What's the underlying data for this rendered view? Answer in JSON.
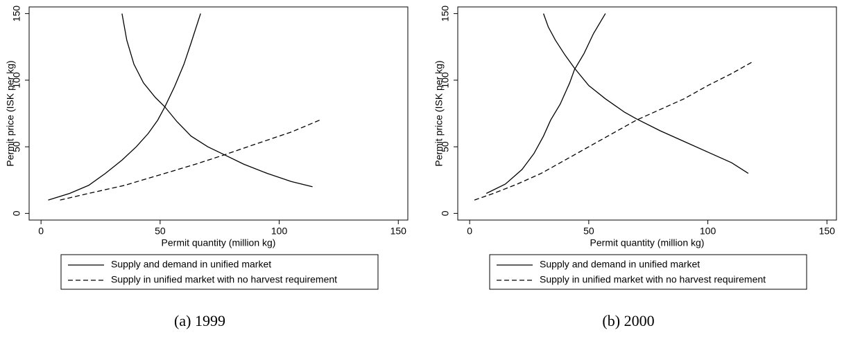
{
  "chart_data": [
    {
      "type": "line",
      "caption": "(a) 1999",
      "x_label": "Permit quantity (million kg)",
      "y_label": "Permit price (ISK per kg)",
      "xlim": [
        -5,
        154
      ],
      "ylim": [
        -5,
        155
      ],
      "xticks": [
        0,
        50,
        100,
        150
      ],
      "yticks": [
        0,
        50,
        100,
        150
      ],
      "series": [
        {
          "name": "Supply and demand in unified market",
          "color": "#000000",
          "dash": "solid",
          "lines": [
            {
              "x": [
                3,
                12,
                20,
                27,
                34,
                40,
                45,
                49,
                52,
                56,
                60,
                63,
                67
              ],
              "y": [
                10,
                15,
                21,
                30,
                40,
                50,
                60,
                70,
                80,
                95,
                112,
                128,
                150
              ]
            },
            {
              "x": [
                34,
                36,
                39,
                43,
                48,
                52,
                57,
                63,
                70,
                77,
                85,
                95,
                105,
                114
              ],
              "y": [
                150,
                130,
                112,
                98,
                87,
                80,
                69,
                58,
                50,
                44,
                37,
                30,
                24,
                20
              ]
            }
          ]
        },
        {
          "name": "Supply in unified market with no harvest requirement",
          "color": "#000000",
          "dash": "dashed",
          "lines": [
            {
              "x": [
                8,
                20,
                35,
                50,
                65,
                77,
                90,
                105,
                117
              ],
              "y": [
                10,
                15,
                21,
                29,
                37,
                44,
                52,
                61,
                70
              ]
            }
          ]
        }
      ]
    },
    {
      "type": "line",
      "caption": "(b) 2000",
      "x_label": "Permit quantity (million kg)",
      "y_label": "Permit price (ISK per kg)",
      "xlim": [
        -5,
        154
      ],
      "ylim": [
        -5,
        155
      ],
      "xticks": [
        0,
        50,
        100,
        150
      ],
      "yticks": [
        0,
        50,
        100,
        150
      ],
      "series": [
        {
          "name": "Supply and demand in unified market",
          "color": "#000000",
          "dash": "solid",
          "lines": [
            {
              "x": [
                7,
                15,
                22,
                27,
                31,
                34,
                38,
                42,
                44,
                48,
                52,
                57
              ],
              "y": [
                15,
                22,
                33,
                45,
                58,
                70,
                82,
                98,
                108,
                120,
                135,
                150
              ]
            },
            {
              "x": [
                31,
                33,
                36,
                40,
                44,
                50,
                57,
                65,
                70,
                80,
                90,
                100,
                110,
                117
              ],
              "y": [
                150,
                140,
                130,
                119,
                109,
                96,
                86,
                76,
                71,
                62,
                54,
                46,
                38,
                30
              ]
            }
          ]
        },
        {
          "name": "Supply in unified market with no harvest requirement",
          "color": "#000000",
          "dash": "dashed",
          "lines": [
            {
              "x": [
                2,
                10,
                20,
                30,
                40,
                50,
                58,
                70,
                80,
                90,
                100,
                110,
                119
              ],
              "y": [
                10,
                15,
                22,
                30,
                40,
                50,
                58,
                70,
                78,
                86,
                96,
                105,
                114
              ]
            }
          ]
        }
      ]
    }
  ]
}
